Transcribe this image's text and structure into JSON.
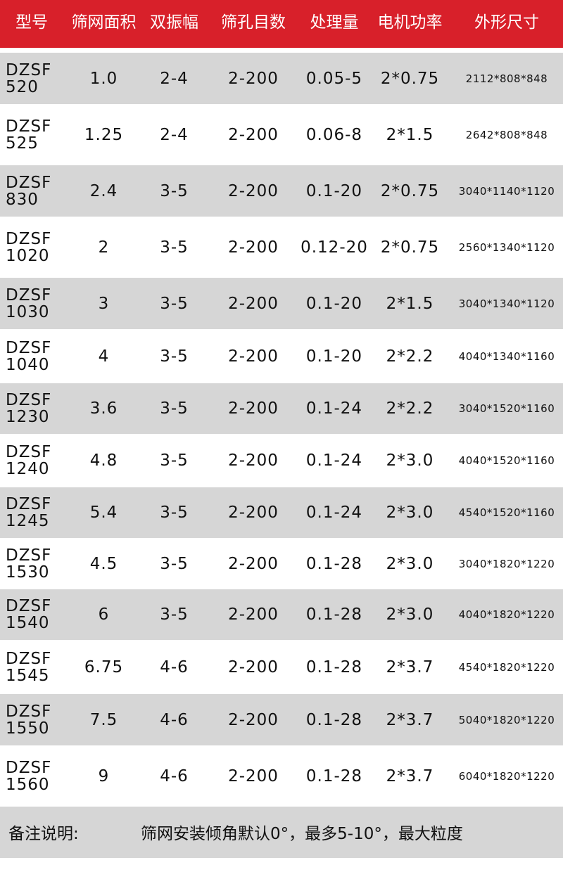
{
  "colors": {
    "header_bg": "#d8202a",
    "row_alt_bg": "#d6d6d6"
  },
  "headers": [
    "型号",
    "筛网面积",
    "双振幅",
    "筛孔目数",
    "处理量",
    "电机功率",
    "外形尺寸"
  ],
  "rows": [
    {
      "model_a": "DZSF",
      "model_b": "520",
      "area": "1.0",
      "amplitude": "2-4",
      "mesh": "2-200",
      "capacity": "0.05-5",
      "power": "2*0.75",
      "size": "2112*808*848"
    },
    {
      "model_a": "DZSF",
      "model_b": "525",
      "area": "1.25",
      "amplitude": "2-4",
      "mesh": "2-200",
      "capacity": "0.06-8",
      "power": "2*1.5",
      "size": "2642*808*848"
    },
    {
      "model_a": "DZSF",
      "model_b": "830",
      "area": "2.4",
      "amplitude": "3-5",
      "mesh": "2-200",
      "capacity": "0.1-20",
      "power": "2*0.75",
      "size": "3040*1140*1120"
    },
    {
      "model_a": "DZSF",
      "model_b": "1020",
      "area": "2",
      "amplitude": "3-5",
      "mesh": "2-200",
      "capacity": "0.12-20",
      "power": "2*0.75",
      "size": "2560*1340*1120"
    },
    {
      "model_a": "DZSF",
      "model_b": "1030",
      "area": "3",
      "amplitude": "3-5",
      "mesh": "2-200",
      "capacity": "0.1-20",
      "power": "2*1.5",
      "size": "3040*1340*1120"
    },
    {
      "model_a": "DZSF",
      "model_b": "1040",
      "area": "4",
      "amplitude": "3-5",
      "mesh": "2-200",
      "capacity": "0.1-20",
      "power": "2*2.2",
      "size": "4040*1340*1160"
    },
    {
      "model_a": "DZSF",
      "model_b": "1230",
      "area": "3.6",
      "amplitude": "3-5",
      "mesh": "2-200",
      "capacity": "0.1-24",
      "power": "2*2.2",
      "size": "3040*1520*1160"
    },
    {
      "model_a": "DZSF",
      "model_b": "1240",
      "area": "4.8",
      "amplitude": "3-5",
      "mesh": "2-200",
      "capacity": "0.1-24",
      "power": "2*3.0",
      "size": "4040*1520*1160"
    },
    {
      "model_a": "DZSF",
      "model_b": "1245",
      "area": "5.4",
      "amplitude": "3-5",
      "mesh": "2-200",
      "capacity": "0.1-24",
      "power": "2*3.0",
      "size": "4540*1520*1160"
    },
    {
      "model_a": "DZSF",
      "model_b": "1530",
      "area": "4.5",
      "amplitude": "3-5",
      "mesh": "2-200",
      "capacity": "0.1-28",
      "power": "2*3.0",
      "size": "3040*1820*1220"
    },
    {
      "model_a": "DZSF",
      "model_b": "1540",
      "area": "6",
      "amplitude": "3-5",
      "mesh": "2-200",
      "capacity": "0.1-28",
      "power": "2*3.0",
      "size": "4040*1820*1220"
    },
    {
      "model_a": "DZSF",
      "model_b": "1545",
      "area": "6.75",
      "amplitude": "4-6",
      "mesh": "2-200",
      "capacity": "0.1-28",
      "power": "2*3.7",
      "size": "4540*1820*1220"
    },
    {
      "model_a": "DZSF",
      "model_b": "1550",
      "area": "7.5",
      "amplitude": "4-6",
      "mesh": "2-200",
      "capacity": "0.1-28",
      "power": "2*3.7",
      "size": "5040*1820*1220"
    },
    {
      "model_a": "DZSF",
      "model_b": "1560",
      "area": "9",
      "amplitude": "4-6",
      "mesh": "2-200",
      "capacity": "0.1-28",
      "power": "2*3.7",
      "size": "6040*1820*1220"
    }
  ],
  "note": {
    "label": "备注说明:",
    "text": "筛网安装倾角默认0°，最多5-10°，最大粒度"
  }
}
